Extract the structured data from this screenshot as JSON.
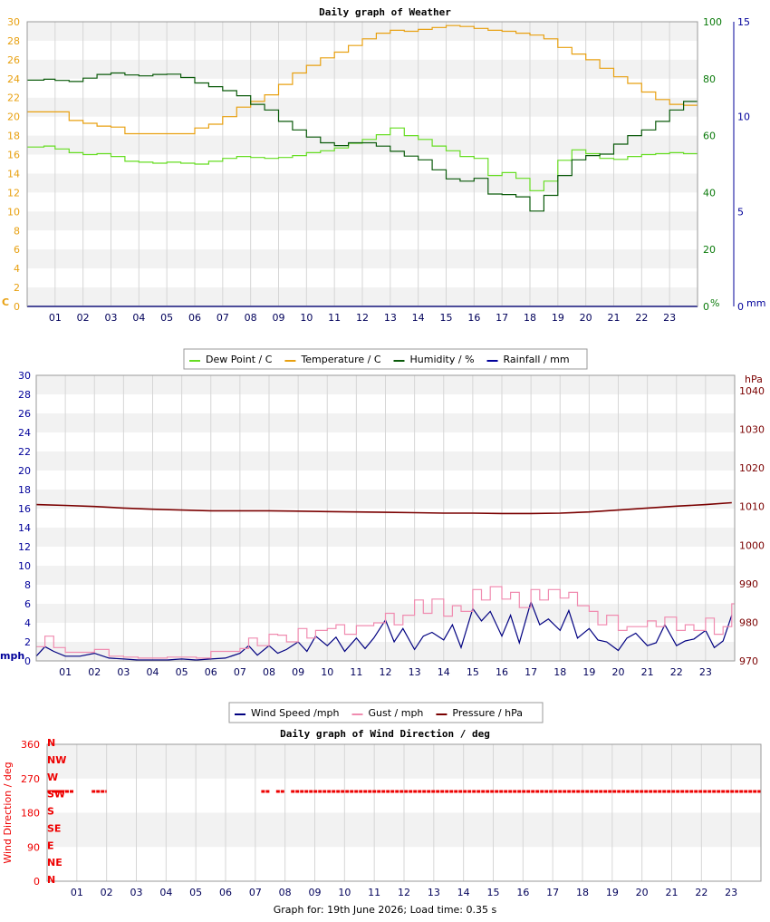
{
  "footer": "Graph for: 19th June 2026; Load time: 0.35 s",
  "colors": {
    "dewpoint": "#66dd22",
    "temperature": "#e8a010",
    "humidity": "#0a5a0a",
    "rainfall": "#00009a",
    "wind": "#000080",
    "gust": "#f08cb0",
    "pressure": "#7a0000",
    "direction": "#ee0000",
    "temp_axis": "#e8a010",
    "hum_axis": "#0a7a0a",
    "rain_axis": "#00009a",
    "wind_axis": "#00009a",
    "press_axis": "#7a0000"
  },
  "chart_data": [
    {
      "type": "line",
      "title": "Daily graph of Weather",
      "x_ticks": [
        "01",
        "02",
        "03",
        "04",
        "05",
        "06",
        "07",
        "08",
        "09",
        "10",
        "11",
        "12",
        "13",
        "14",
        "15",
        "16",
        "17",
        "18",
        "19",
        "20",
        "21",
        "22",
        "23"
      ],
      "xlim": [
        0,
        24
      ],
      "y_left": {
        "label": "C",
        "ticks": [
          "0",
          "2",
          "4",
          "6",
          "8",
          "10",
          "12",
          "14",
          "16",
          "18",
          "20",
          "22",
          "24",
          "26",
          "28",
          "30"
        ],
        "lim": [
          0,
          30
        ]
      },
      "y_right1": {
        "label": "%",
        "ticks": [
          "0",
          "20",
          "40",
          "60",
          "80",
          "100"
        ],
        "lim": [
          0,
          100
        ]
      },
      "y_right2": {
        "label": "mm",
        "ticks": [
          "0",
          "5",
          "10",
          "15"
        ],
        "lim": [
          0,
          15
        ]
      },
      "grid": true,
      "legend_position": "bottom",
      "series": [
        {
          "name": "Dew Point / C",
          "axis": "left",
          "x": [
            0,
            0.6,
            1,
            1.5,
            2,
            2.5,
            3,
            3.5,
            4,
            4.5,
            5,
            5.5,
            6,
            6.5,
            7,
            7.5,
            8,
            8.5,
            9,
            9.5,
            10,
            10.5,
            11,
            11.5,
            12,
            12.5,
            13,
            13.5,
            14,
            14.5,
            15,
            15.5,
            16,
            16.5,
            17,
            17.5,
            18,
            18.5,
            19,
            19.5,
            20,
            20.5,
            21,
            21.5,
            22,
            22.5,
            23,
            23.5
          ],
          "y": [
            16.8,
            16.9,
            16.6,
            16.2,
            16.0,
            16.1,
            15.8,
            15.3,
            15.2,
            15.1,
            15.2,
            15.1,
            15.0,
            15.3,
            15.6,
            15.8,
            15.7,
            15.6,
            15.7,
            15.9,
            16.2,
            16.4,
            16.7,
            17.2,
            17.6,
            18.1,
            18.8,
            18.0,
            17.6,
            16.9,
            16.4,
            15.8,
            15.6,
            13.8,
            14.1,
            13.5,
            12.2,
            13.2,
            15.4,
            16.5,
            16.1,
            15.6,
            15.5,
            15.8,
            16.0,
            16.1,
            16.2,
            16.1
          ]
        },
        {
          "name": "Temperature / C",
          "axis": "left",
          "x": [
            0,
            0.6,
            1,
            1.5,
            2,
            2.5,
            3,
            3.5,
            4,
            4.5,
            5,
            5.5,
            6,
            6.5,
            7,
            7.5,
            8,
            8.5,
            9,
            9.5,
            10,
            10.5,
            11,
            11.5,
            12,
            12.5,
            13,
            13.5,
            14,
            14.5,
            15,
            15.5,
            16,
            16.5,
            17,
            17.5,
            18,
            18.5,
            19,
            19.5,
            20,
            20.5,
            21,
            21.5,
            22,
            22.5,
            23,
            23.5
          ],
          "y": [
            20.5,
            20.5,
            20.5,
            19.6,
            19.3,
            19.0,
            18.9,
            18.2,
            18.2,
            18.2,
            18.2,
            18.2,
            18.8,
            19.2,
            20.0,
            21.0,
            21.6,
            22.3,
            23.4,
            24.6,
            25.4,
            26.2,
            26.8,
            27.5,
            28.2,
            28.8,
            29.1,
            29.0,
            29.2,
            29.4,
            29.6,
            29.5,
            29.3,
            29.1,
            29.0,
            28.8,
            28.6,
            28.2,
            27.3,
            26.6,
            26.0,
            25.1,
            24.2,
            23.5,
            22.6,
            21.8,
            21.3,
            21.2
          ]
        },
        {
          "name": "Humidity / %",
          "axis": "right1",
          "x": [
            0,
            0.6,
            1,
            1.5,
            2,
            2.5,
            3,
            3.5,
            4,
            4.5,
            5,
            5.5,
            6,
            6.5,
            7,
            7.5,
            8,
            8.5,
            9,
            9.5,
            10,
            10.5,
            11,
            11.5,
            12,
            12.5,
            13,
            13.5,
            14,
            14.5,
            15,
            15.5,
            16,
            16.5,
            17,
            17.5,
            18,
            18.5,
            19,
            19.5,
            20,
            20.5,
            21,
            21.5,
            22,
            22.5,
            23,
            23.5
          ],
          "y": [
            79.5,
            79.8,
            79.4,
            79.0,
            80.2,
            81.5,
            82.0,
            81.3,
            81.0,
            81.5,
            81.6,
            80.4,
            78.5,
            77.2,
            75.8,
            74.0,
            71.0,
            69.0,
            65.0,
            62.0,
            59.5,
            57.5,
            56.5,
            57.5,
            57.5,
            56.3,
            54.5,
            52.8,
            51.5,
            48.0,
            44.8,
            44.0,
            45.0,
            39.5,
            39.3,
            38.5,
            33.5,
            39.0,
            46.0,
            51.5,
            53.0,
            53.5,
            57.0,
            60.0,
            62.0,
            65.0,
            69.0,
            72.0
          ]
        },
        {
          "name": "Rainfall / mm",
          "axis": "right2",
          "x": [
            0,
            24
          ],
          "y": [
            0,
            0
          ]
        }
      ]
    },
    {
      "type": "line",
      "title": "",
      "x_ticks": [
        "01",
        "02",
        "03",
        "04",
        "05",
        "06",
        "07",
        "08",
        "09",
        "10",
        "11",
        "12",
        "13",
        "14",
        "15",
        "16",
        "17",
        "18",
        "19",
        "20",
        "21",
        "22",
        "23"
      ],
      "xlim": [
        0,
        24
      ],
      "y_left": {
        "label": "mph",
        "ticks": [
          "0",
          "2",
          "4",
          "6",
          "8",
          "10",
          "12",
          "14",
          "16",
          "18",
          "20",
          "22",
          "24",
          "26",
          "28",
          "30"
        ],
        "lim": [
          0,
          30
        ]
      },
      "y_right": {
        "label": "hPa",
        "ticks": [
          "970",
          "980",
          "990",
          "1000",
          "1010",
          "1020",
          "1030",
          "1040"
        ],
        "lim": [
          970,
          1044
        ]
      },
      "grid": true,
      "legend_position": "bottom",
      "series": [
        {
          "name": "Wind Speed /mph",
          "axis": "left",
          "x": [
            0,
            0.3,
            0.6,
            1,
            1.5,
            2,
            2.5,
            3,
            3.5,
            4,
            4.5,
            5,
            5.5,
            6,
            6.5,
            7,
            7.3,
            7.6,
            8,
            8.3,
            8.6,
            9,
            9.3,
            9.6,
            10,
            10.3,
            10.6,
            11,
            11.3,
            11.6,
            12,
            12.3,
            12.6,
            13,
            13.3,
            13.6,
            14,
            14.3,
            14.6,
            15,
            15.3,
            15.6,
            16,
            16.3,
            16.6,
            17,
            17.3,
            17.6,
            18,
            18.3,
            18.6,
            19,
            19.3,
            19.6,
            20,
            20.3,
            20.6,
            21,
            21.3,
            21.6,
            22,
            22.3,
            22.6,
            23,
            23.3,
            23.6,
            23.9
          ],
          "y": [
            0.5,
            1.5,
            1.0,
            0.5,
            0.5,
            0.8,
            0.3,
            0.2,
            0.1,
            0.1,
            0.1,
            0.2,
            0.1,
            0.2,
            0.3,
            0.8,
            1.6,
            0.6,
            1.6,
            0.8,
            1.2,
            2.0,
            1.0,
            2.6,
            1.6,
            2.5,
            1.0,
            2.4,
            1.3,
            2.4,
            4.3,
            2.0,
            3.4,
            1.2,
            2.6,
            3.0,
            2.2,
            3.8,
            1.4,
            5.5,
            4.2,
            5.2,
            2.6,
            4.8,
            1.9,
            6.2,
            3.8,
            4.4,
            3.2,
            5.3,
            2.4,
            3.4,
            2.2,
            2.0,
            1.1,
            2.4,
            2.9,
            1.6,
            1.9,
            3.8,
            1.6,
            2.1,
            2.3,
            3.2,
            1.4,
            2.1,
            4.8
          ]
        },
        {
          "name": "Gust / mph",
          "axis": "left",
          "x": [
            0,
            0.3,
            0.6,
            1,
            1.5,
            2,
            2.5,
            3,
            3.5,
            4,
            4.5,
            5,
            5.5,
            6,
            6.5,
            7,
            7.3,
            7.6,
            8,
            8.3,
            8.6,
            9,
            9.3,
            9.6,
            10,
            10.3,
            10.6,
            11,
            11.3,
            11.6,
            12,
            12.3,
            12.6,
            13,
            13.3,
            13.6,
            14,
            14.3,
            14.6,
            15,
            15.3,
            15.6,
            16,
            16.3,
            16.6,
            17,
            17.3,
            17.6,
            18,
            18.3,
            18.6,
            19,
            19.3,
            19.6,
            20,
            20.3,
            20.6,
            21,
            21.3,
            21.6,
            22,
            22.3,
            22.6,
            23,
            23.3,
            23.6,
            23.9
          ],
          "y": [
            1.5,
            2.6,
            1.4,
            0.9,
            0.9,
            1.2,
            0.5,
            0.4,
            0.3,
            0.3,
            0.4,
            0.4,
            0.3,
            1.0,
            1.0,
            1.3,
            2.4,
            1.6,
            2.8,
            2.7,
            2.0,
            3.4,
            2.4,
            3.2,
            3.4,
            3.8,
            2.8,
            3.7,
            3.7,
            4.0,
            5.0,
            3.8,
            4.8,
            6.4,
            5.0,
            6.5,
            4.7,
            5.8,
            5.2,
            7.5,
            6.4,
            7.8,
            6.5,
            7.2,
            5.6,
            7.5,
            6.4,
            7.5,
            6.6,
            7.2,
            5.8,
            5.2,
            3.8,
            4.8,
            3.2,
            3.6,
            3.6,
            4.2,
            3.6,
            4.6,
            3.2,
            3.8,
            3.2,
            4.5,
            2.8,
            3.6,
            6.0
          ]
        },
        {
          "name": "Pressure / hPa",
          "axis": "right",
          "x": [
            0,
            1,
            2,
            3,
            4,
            5,
            6,
            7,
            8,
            9,
            10,
            11,
            12,
            13,
            14,
            15,
            16,
            17,
            18,
            19,
            20,
            21,
            22,
            23,
            23.9
          ],
          "y": [
            1010.5,
            1010.3,
            1010.0,
            1009.6,
            1009.3,
            1009.1,
            1008.9,
            1008.9,
            1008.9,
            1008.8,
            1008.7,
            1008.6,
            1008.5,
            1008.4,
            1008.3,
            1008.3,
            1008.2,
            1008.2,
            1008.3,
            1008.6,
            1009.1,
            1009.6,
            1010.1,
            1010.5,
            1011.0
          ]
        }
      ]
    },
    {
      "type": "scatter",
      "title": "Daily graph of Wind Direction / deg",
      "x_ticks": [
        "01",
        "02",
        "03",
        "04",
        "05",
        "06",
        "07",
        "08",
        "09",
        "10",
        "11",
        "12",
        "13",
        "14",
        "15",
        "16",
        "17",
        "18",
        "19",
        "20",
        "21",
        "22",
        "23"
      ],
      "xlim": [
        0,
        24
      ],
      "y_left": {
        "label": "Wind Direction / deg",
        "ticks": [
          "0",
          "90",
          "180",
          "270",
          "360"
        ],
        "lim": [
          0,
          360
        ]
      },
      "compass": [
        "N",
        "NE",
        "E",
        "SE",
        "S",
        "SW",
        "W",
        "NW",
        "N"
      ],
      "grid": true,
      "series": [
        {
          "name": "",
          "ranges": [
            [
              0.0,
              0.9
            ],
            [
              1.5,
              2.0
            ],
            [
              7.2,
              7.5
            ],
            [
              7.7,
              8.0
            ],
            [
              8.2,
              24.0
            ]
          ],
          "y": 236
        }
      ]
    }
  ]
}
